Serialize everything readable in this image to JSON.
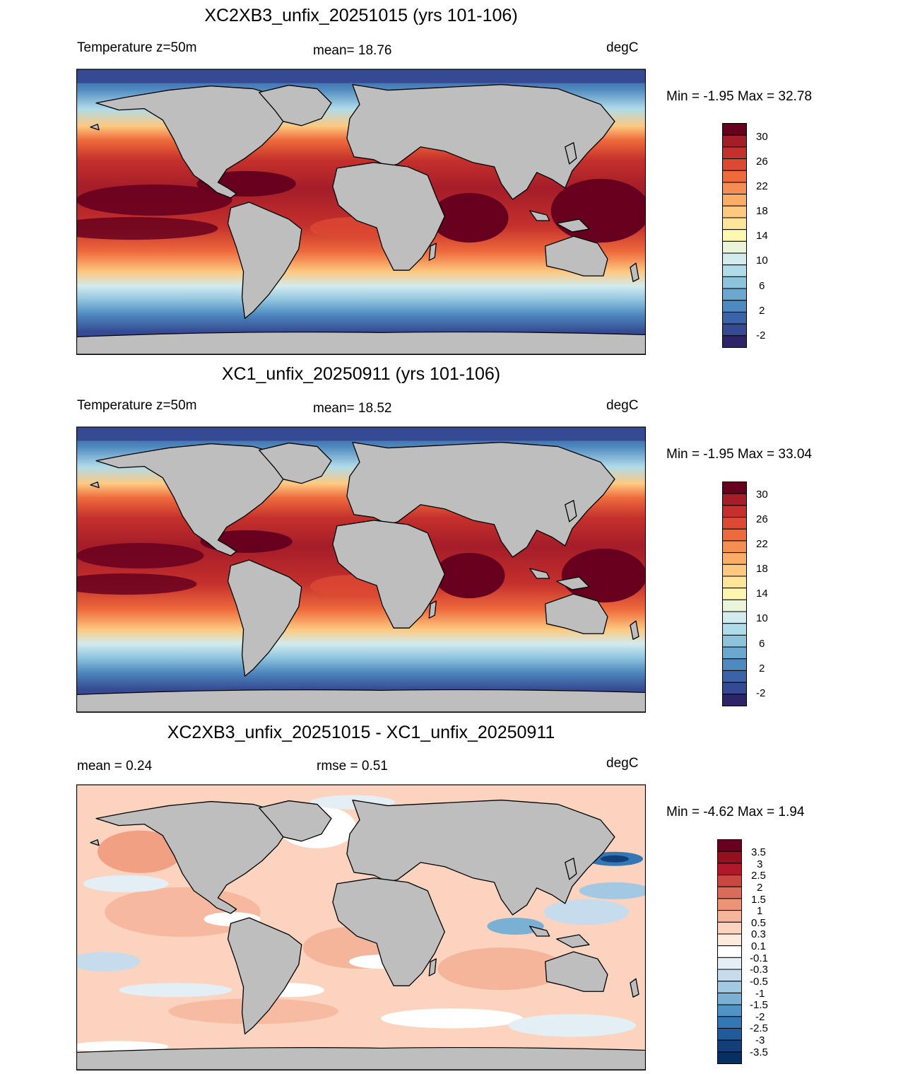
{
  "panels": [
    {
      "title": "XC2XB3_unfix_20251015 (yrs 101-106)",
      "left_label": "Temperature z=50m",
      "center_label": "mean=  18.76",
      "units": "degC",
      "minmax": "Min =  -1.95 Max =  32.78",
      "colorbar_labels": [
        "30",
        "26",
        "22",
        "18",
        "14",
        "10",
        "6",
        "2",
        "-2"
      ]
    },
    {
      "title": "XC1_unfix_20250911 (yrs 101-106)",
      "left_label": "Temperature z=50m",
      "center_label": "mean=  18.52",
      "units": "degC",
      "minmax": "Min =  -1.95 Max =  33.04",
      "colorbar_labels": [
        "30",
        "26",
        "22",
        "18",
        "14",
        "10",
        "6",
        "2",
        "-2"
      ]
    },
    {
      "title": "XC2XB3_unfix_20251015 - XC1_unfix_20250911",
      "left_label": "mean =   0.24",
      "center_label": "rmse =   0.51",
      "units": "degC",
      "minmax": "Min =  -4.62 Max =   1.94",
      "colorbar_labels": [
        "3.5",
        "3",
        "2.5",
        "2",
        "1.5",
        "1",
        "0.5",
        "0.3",
        "0.1",
        "-0.1",
        "-0.3",
        "-0.5",
        "-1",
        "-1.5",
        "-2",
        "-2.5",
        "-3",
        "-3.5"
      ]
    }
  ],
  "colors": {
    "land": "#bebebe",
    "abs_scale": [
      "#67001f",
      "#a41d29",
      "#c5302c",
      "#dd4a33",
      "#ee6a3c",
      "#f68d52",
      "#fbad66",
      "#fdc980",
      "#fee59a",
      "#fcf6b0",
      "#eaf4d8",
      "#d2ebee",
      "#b0dbe9",
      "#8ec3de",
      "#6ba8d0",
      "#4e89bf",
      "#3b64a8",
      "#354a93",
      "#2e2469"
    ],
    "diff_scale": [
      "#67001f",
      "#94101f",
      "#b2182b",
      "#ca4741",
      "#dc6c5a",
      "#ed9376",
      "#f5b59a",
      "#fcd3be",
      "#fde9de",
      "#ffffff",
      "#e3eef5",
      "#c6dcec",
      "#a3c8e2",
      "#79b0d4",
      "#4f94c4",
      "#3377b4",
      "#225b9a",
      "#123f78",
      "#053061"
    ]
  }
}
